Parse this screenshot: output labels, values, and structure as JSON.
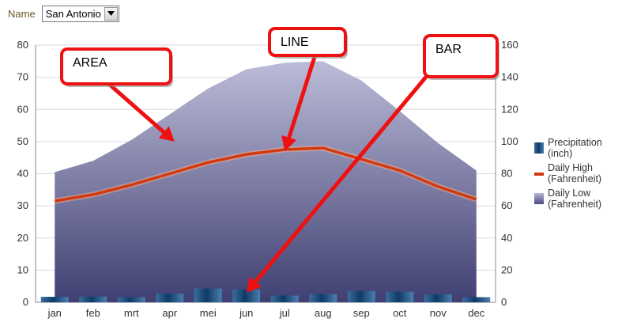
{
  "filter": {
    "label": "Name",
    "selected": "San Antonio"
  },
  "icons": {
    "dropdown": "chevron-down-icon"
  },
  "chart_data": {
    "type": "bar",
    "categories": [
      "jan",
      "feb",
      "mrt",
      "apr",
      "mei",
      "jun",
      "jul",
      "aug",
      "sep",
      "oct",
      "nov",
      "dec"
    ],
    "left_axis": {
      "min": 0,
      "max": 80,
      "ticks": [
        0,
        10,
        20,
        30,
        40,
        50,
        60,
        70,
        80
      ]
    },
    "right_axis": {
      "min": 0,
      "max": 160,
      "ticks": [
        0,
        20,
        40,
        60,
        80,
        100,
        120,
        140,
        160
      ]
    },
    "series": [
      {
        "name": "Precipitation (inch)",
        "legend": [
          "Precipitation",
          "(inch)"
        ],
        "type": "bar",
        "axis": "left",
        "color": "#1f4e7a",
        "values": [
          1.7,
          1.8,
          1.6,
          2.7,
          4.3,
          4.0,
          2.1,
          2.5,
          3.5,
          3.3,
          2.5,
          1.6
        ]
      },
      {
        "name": "Daily High (Fahrenheit)",
        "legend": [
          "Daily High",
          "(Fahrenheit)"
        ],
        "type": "line",
        "axis": "right",
        "color": "#d23a0e",
        "values": [
          63,
          67,
          73,
          80,
          87,
          92,
          95,
          96,
          89,
          82,
          72,
          64
        ]
      },
      {
        "name": "Daily Low (Fahrenheit)",
        "legend": [
          "Daily Low",
          "(Fahrenheit)"
        ],
        "type": "area",
        "axis": "right",
        "color": "#6a6aa0",
        "values": [
          81,
          88,
          101,
          117,
          133,
          145,
          149,
          150,
          138,
          119,
          99,
          82
        ]
      }
    ],
    "annotations": [
      {
        "text": "AREA",
        "target_category": "apr",
        "target_series": "Daily Low (Fahrenheit)",
        "target_value": 50
      },
      {
        "text": "LINE",
        "target_category": "jul",
        "target_series": "Daily High (Fahrenheit)",
        "target_value": 47
      },
      {
        "text": "BAR",
        "target_category": "jun",
        "target_series": "Precipitation (inch)",
        "target_value": 3
      }
    ],
    "grid": true,
    "legend_position": "right"
  }
}
